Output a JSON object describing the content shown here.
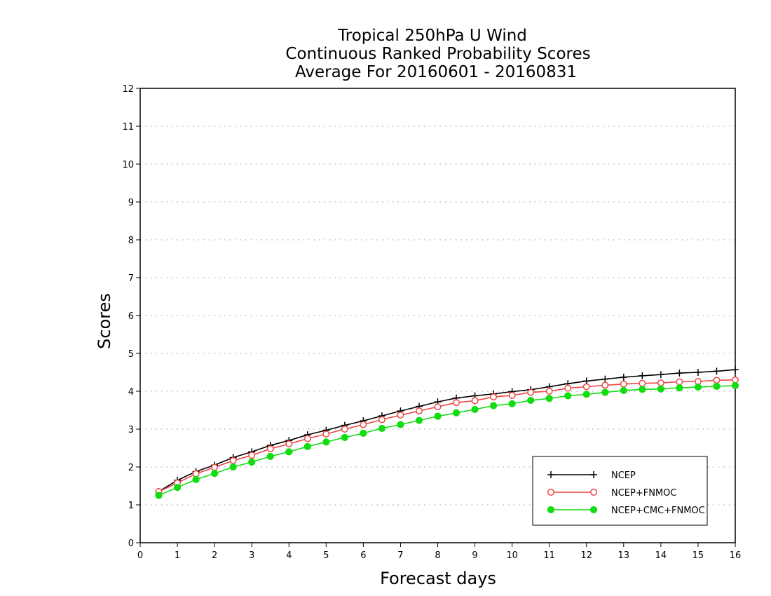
{
  "chart_data": {
    "type": "line",
    "title_lines": [
      "Tropical 250hPa U Wind",
      "Continuous Ranked Probability Scores",
      "Average For 20160601 - 20160831"
    ],
    "xlabel": "Forecast days",
    "ylabel": "Scores",
    "xlim": [
      0,
      16
    ],
    "ylim": [
      0,
      12
    ],
    "x_ticks": [
      "0",
      "1",
      "2",
      "3",
      "4",
      "5",
      "6",
      "7",
      "8",
      "9",
      "10",
      "11",
      "12",
      "13",
      "14",
      "15",
      "16"
    ],
    "y_ticks": [
      "0",
      "1",
      "2",
      "3",
      "4",
      "5",
      "6",
      "7",
      "8",
      "9",
      "10",
      "11",
      "12"
    ],
    "grid": "horizontal dotted",
    "legend_position": "bottom-right",
    "x": [
      0.5,
      1,
      1.5,
      2,
      2.5,
      3,
      3.5,
      4,
      4.5,
      5,
      5.5,
      6,
      6.5,
      7,
      7.5,
      8,
      8.5,
      9,
      9.5,
      10,
      10.5,
      11,
      11.5,
      12,
      12.5,
      13,
      13.5,
      14,
      14.5,
      15,
      15.5,
      16
    ],
    "series": [
      {
        "name": "NCEP",
        "color": "#000000",
        "marker": "plus",
        "values": [
          1.35,
          1.65,
          1.88,
          2.05,
          2.25,
          2.4,
          2.57,
          2.7,
          2.85,
          2.97,
          3.1,
          3.22,
          3.35,
          3.48,
          3.6,
          3.72,
          3.82,
          3.88,
          3.93,
          3.99,
          4.04,
          4.12,
          4.2,
          4.27,
          4.32,
          4.37,
          4.41,
          4.44,
          4.48,
          4.5,
          4.53,
          4.57
        ]
      },
      {
        "name": "NCEP+FNMOC",
        "color": "#ee4444",
        "marker": "open-circle",
        "values": [
          1.35,
          1.58,
          1.82,
          1.99,
          2.17,
          2.31,
          2.48,
          2.61,
          2.75,
          2.87,
          3.0,
          3.12,
          3.25,
          3.37,
          3.48,
          3.59,
          3.7,
          3.75,
          3.85,
          3.89,
          3.97,
          4.0,
          4.08,
          4.12,
          4.16,
          4.19,
          4.21,
          4.22,
          4.25,
          4.26,
          4.29,
          4.3
        ]
      },
      {
        "name": "NCEP+CMC+FNMOC",
        "color": "#11dd11",
        "marker": "filled-circle",
        "values": [
          1.25,
          1.46,
          1.67,
          1.83,
          2.0,
          2.13,
          2.28,
          2.4,
          2.54,
          2.66,
          2.78,
          2.89,
          3.02,
          3.12,
          3.23,
          3.34,
          3.43,
          3.52,
          3.62,
          3.67,
          3.76,
          3.81,
          3.88,
          3.92,
          3.97,
          4.02,
          4.05,
          4.06,
          4.09,
          4.11,
          4.13,
          4.15
        ]
      }
    ]
  }
}
